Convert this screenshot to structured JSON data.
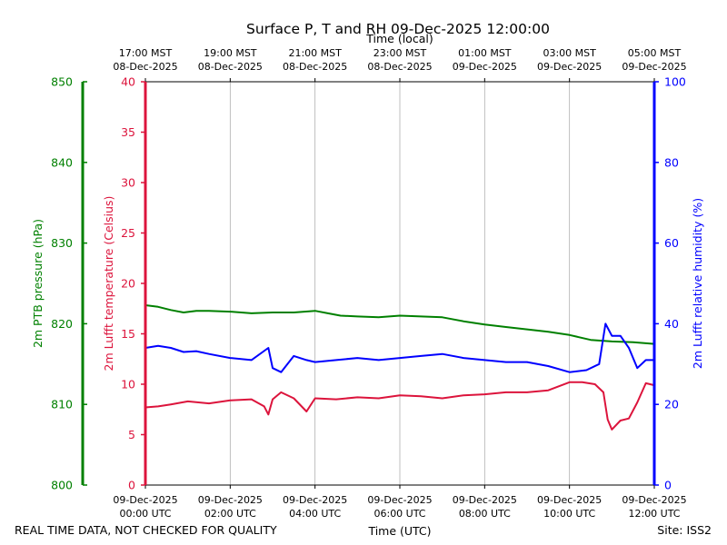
{
  "chart_data": {
    "type": "line",
    "title": "Surface P, T and RH 09-Dec-2025 12:00:00",
    "xlabel_bottom": "Time (UTC)",
    "xlabel_top": "Time (local)",
    "footer_left": "REAL TIME DATA, NOT CHECKED FOR QUALITY",
    "footer_right": "Site: ISS2",
    "x_range_hours_utc": [
      0,
      12
    ],
    "grid": "vertical",
    "bottom_ticks": [
      {
        "hour": 0,
        "line1": "09-Dec-2025",
        "line2": "00:00 UTC"
      },
      {
        "hour": 2,
        "line1": "09-Dec-2025",
        "line2": "02:00 UTC"
      },
      {
        "hour": 4,
        "line1": "09-Dec-2025",
        "line2": "04:00 UTC"
      },
      {
        "hour": 6,
        "line1": "09-Dec-2025",
        "line2": "06:00 UTC"
      },
      {
        "hour": 8,
        "line1": "09-Dec-2025",
        "line2": "08:00 UTC"
      },
      {
        "hour": 10,
        "line1": "09-Dec-2025",
        "line2": "10:00 UTC"
      },
      {
        "hour": 12,
        "line1": "09-Dec-2025",
        "line2": "12:00 UTC"
      }
    ],
    "top_ticks": [
      {
        "hour": 0,
        "line1": "17:00 MST",
        "line2": "08-Dec-2025"
      },
      {
        "hour": 2,
        "line1": "19:00 MST",
        "line2": "08-Dec-2025"
      },
      {
        "hour": 4,
        "line1": "21:00 MST",
        "line2": "08-Dec-2025"
      },
      {
        "hour": 6,
        "line1": "23:00 MST",
        "line2": "08-Dec-2025"
      },
      {
        "hour": 8,
        "line1": "01:00 MST",
        "line2": "09-Dec-2025"
      },
      {
        "hour": 10,
        "line1": "03:00 MST",
        "line2": "09-Dec-2025"
      },
      {
        "hour": 12,
        "line1": "05:00 MST",
        "line2": "09-Dec-2025"
      }
    ],
    "axes": {
      "pressure": {
        "label": "2m PTB pressure (hPa)",
        "range": [
          800,
          850
        ],
        "ticks": [
          "800",
          "810",
          "820",
          "830",
          "840",
          "850"
        ],
        "color": "#008000"
      },
      "temperature": {
        "label": "2m Lufft temperature (Celsius)",
        "range": [
          0,
          40
        ],
        "ticks": [
          "0",
          "5",
          "10",
          "15",
          "20",
          "25",
          "30",
          "35",
          "40"
        ],
        "color": "#dc143c"
      },
      "humidity": {
        "label": "2m Lufft relative humidity (%)",
        "range": [
          0,
          100
        ],
        "ticks": [
          "0",
          "20",
          "40",
          "60",
          "80",
          "100"
        ],
        "color": "#0000ff"
      }
    },
    "series": [
      {
        "key": "pressure",
        "axis": "pressure",
        "color": "#008000",
        "x": [
          0,
          0.3,
          0.6,
          0.9,
          1.2,
          1.5,
          2,
          2.5,
          3,
          3.5,
          4,
          4.3,
          4.6,
          5,
          5.5,
          6,
          6.5,
          7,
          7.5,
          8,
          8.5,
          9,
          9.5,
          10,
          10.5,
          11,
          11.5,
          12
        ],
        "y": [
          822.3,
          822.1,
          821.7,
          821.4,
          821.6,
          821.6,
          821.5,
          821.3,
          821.4,
          821.4,
          821.6,
          821.3,
          821.0,
          820.9,
          820.8,
          821.0,
          820.9,
          820.8,
          820.3,
          819.9,
          819.6,
          819.3,
          819.0,
          818.6,
          818.0,
          817.8,
          817.7,
          817.5
        ]
      },
      {
        "key": "temperature",
        "axis": "temperature",
        "color": "#dc143c",
        "x": [
          0,
          0.3,
          0.6,
          1,
          1.5,
          2,
          2.5,
          2.8,
          2.9,
          3,
          3.2,
          3.5,
          3.8,
          4,
          4.5,
          5,
          5.5,
          6,
          6.5,
          7,
          7.5,
          8,
          8.5,
          9,
          9.5,
          10,
          10.3,
          10.6,
          10.8,
          10.9,
          11,
          11.2,
          11.4,
          11.6,
          11.8,
          12
        ],
        "y": [
          7.7,
          7.8,
          8.0,
          8.3,
          8.1,
          8.4,
          8.5,
          7.8,
          7.0,
          8.5,
          9.2,
          8.6,
          7.3,
          8.6,
          8.5,
          8.7,
          8.6,
          8.9,
          8.8,
          8.6,
          8.9,
          9.0,
          9.2,
          9.2,
          9.4,
          10.2,
          10.2,
          10.0,
          9.2,
          6.5,
          5.5,
          6.4,
          6.6,
          8.2,
          10.1,
          9.9
        ]
      },
      {
        "key": "humidity",
        "axis": "humidity",
        "color": "#0000ff",
        "x": [
          0,
          0.3,
          0.6,
          0.9,
          1.2,
          1.5,
          2,
          2.5,
          2.9,
          3,
          3.2,
          3.5,
          3.8,
          4,
          4.5,
          5,
          5.5,
          6,
          6.5,
          7,
          7.5,
          8,
          8.5,
          9,
          9.5,
          10,
          10.4,
          10.7,
          10.85,
          11,
          11.2,
          11.4,
          11.6,
          11.8,
          12
        ],
        "y": [
          34.0,
          34.5,
          34.0,
          33.0,
          33.2,
          32.5,
          31.5,
          31.0,
          34.0,
          29.0,
          28.0,
          32.0,
          31.0,
          30.5,
          31.0,
          31.5,
          31.0,
          31.5,
          32.0,
          32.5,
          31.5,
          31.0,
          30.5,
          30.5,
          29.5,
          28.0,
          28.5,
          30.0,
          40.0,
          37.0,
          37.0,
          34.0,
          29.0,
          31.0,
          31.0
        ]
      }
    ]
  }
}
